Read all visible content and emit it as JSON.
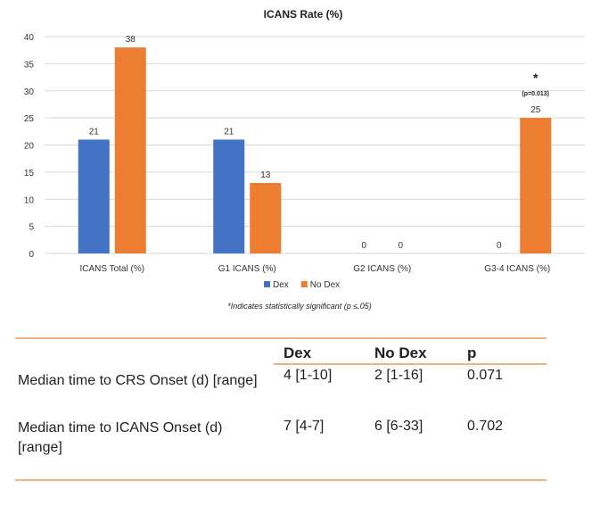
{
  "chart_data": {
    "type": "bar",
    "title": "ICANS Rate (%)",
    "categories": [
      "ICANS Total (%)",
      "G1 ICANS (%)",
      "G2 ICANS (%)",
      "G3-4 ICANS (%)"
    ],
    "series": [
      {
        "name": "Dex",
        "values": [
          21,
          21,
          0,
          0
        ],
        "color": "#4472c4"
      },
      {
        "name": "No Dex",
        "values": [
          38,
          13,
          0,
          25
        ],
        "color": "#ed7d31"
      }
    ],
    "ylim": [
      0,
      40
    ],
    "yticks": [
      0,
      5,
      10,
      15,
      20,
      25,
      30,
      35,
      40
    ],
    "grid": true,
    "legend": "bottom",
    "annotations": [
      {
        "category_index": 3,
        "series_index": 1,
        "mark": "*",
        "text": "(p=0.013)"
      }
    ],
    "footnote": "*Indicates statistically significant (p ≤.05)"
  },
  "table": {
    "headers": [
      "Dex",
      "No Dex",
      "p"
    ],
    "rows": [
      {
        "label": "Median time to CRS Onset (d) [range]",
        "dex": "4 [1-10]",
        "nodex": "2 [1-16]",
        "p": "0.071"
      },
      {
        "label": "Median time to ICANS Onset (d) [range]",
        "dex": "7 [4-7]",
        "nodex": "6 [6-33]",
        "p": "0.702"
      }
    ]
  },
  "colors": {
    "rule": "#f0b27f",
    "grid": "#d9d9d9"
  }
}
